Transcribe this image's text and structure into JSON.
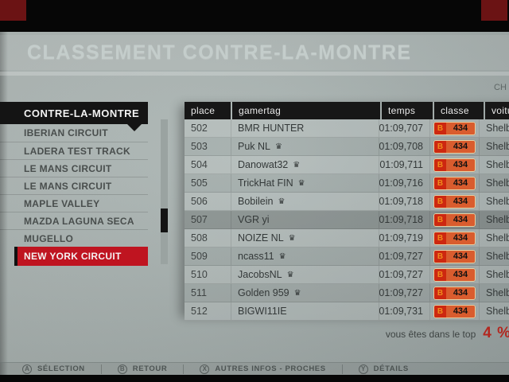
{
  "title": "CLASSEMENT CONTRE-LA-MONTRE",
  "top_right_fragment": "CH",
  "sidebar": {
    "header": "CONTRE-LA-MONTRE",
    "items": [
      {
        "label": "IBERIAN CIRCUIT",
        "selected": false
      },
      {
        "label": "LADERA TEST TRACK",
        "selected": false
      },
      {
        "label": "LE MANS CIRCUIT",
        "selected": false
      },
      {
        "label": "LE MANS CIRCUIT",
        "selected": false
      },
      {
        "label": "MAPLE VALLEY",
        "selected": false
      },
      {
        "label": "MAZDA LAGUNA SECA",
        "selected": false
      },
      {
        "label": "MUGELLO",
        "selected": false
      },
      {
        "label": "NEW YORK CIRCUIT",
        "selected": true
      }
    ]
  },
  "table": {
    "columns": [
      "place",
      "gamertag",
      "temps",
      "classe",
      "voiture"
    ],
    "rows": [
      {
        "place": "502",
        "gamertag": "BMR HUNTER",
        "crown": false,
        "temps": "01:09,707",
        "class_letter": "B",
        "class_number": "434",
        "car": "Shelby",
        "highlighted": false
      },
      {
        "place": "503",
        "gamertag": "Puk NL",
        "crown": true,
        "temps": "01:09,708",
        "class_letter": "B",
        "class_number": "434",
        "car": "Shelby",
        "highlighted": false
      },
      {
        "place": "504",
        "gamertag": "Danowat32",
        "crown": true,
        "temps": "01:09,711",
        "class_letter": "B",
        "class_number": "434",
        "car": "Shelby",
        "highlighted": false
      },
      {
        "place": "505",
        "gamertag": "TrickHat FIN",
        "crown": true,
        "temps": "01:09,716",
        "class_letter": "B",
        "class_number": "434",
        "car": "Shelby",
        "highlighted": false
      },
      {
        "place": "506",
        "gamertag": "Bobilein",
        "crown": true,
        "temps": "01:09,718",
        "class_letter": "B",
        "class_number": "434",
        "car": "Shelby",
        "highlighted": false
      },
      {
        "place": "507",
        "gamertag": "VGR yi",
        "crown": false,
        "temps": "01:09,718",
        "class_letter": "B",
        "class_number": "434",
        "car": "Shelby",
        "highlighted": true
      },
      {
        "place": "508",
        "gamertag": "NOIZE NL",
        "crown": true,
        "temps": "01:09,719",
        "class_letter": "B",
        "class_number": "434",
        "car": "Shelby",
        "highlighted": false
      },
      {
        "place": "509",
        "gamertag": "ncass11",
        "crown": true,
        "temps": "01:09,727",
        "class_letter": "B",
        "class_number": "434",
        "car": "Shelby",
        "highlighted": false
      },
      {
        "place": "510",
        "gamertag": "JacobsNL",
        "crown": true,
        "temps": "01:09,727",
        "class_letter": "B",
        "class_number": "434",
        "car": "Shelby",
        "highlighted": false
      },
      {
        "place": "511",
        "gamertag": "Golden 959",
        "crown": true,
        "temps": "01:09,727",
        "class_letter": "B",
        "class_number": "434",
        "car": "Shelby",
        "highlighted": false
      },
      {
        "place": "512",
        "gamertag": "BIGWI11IE",
        "crown": false,
        "temps": "01:09,731",
        "class_letter": "B",
        "class_number": "434",
        "car": "Shelby",
        "highlighted": false
      }
    ]
  },
  "footer": {
    "rank_text": "vous êtes dans le top",
    "rank_value": "4 %"
  },
  "button_bar": [
    {
      "button": "A",
      "label": "SÉLECTION"
    },
    {
      "button": "B",
      "label": "RETOUR"
    },
    {
      "button": "X",
      "label": "AUTRES INFOS - PROCHES"
    },
    {
      "button": "Y",
      "label": "DÉTAILS"
    }
  ],
  "icons": {
    "crown": "♛"
  },
  "colors": {
    "accent_red": "#bf1420",
    "header_black": "#141414",
    "class_badge_red": "#cd2810",
    "class_badge_orange": "#d95c2e",
    "rank_red": "#b3271f"
  }
}
